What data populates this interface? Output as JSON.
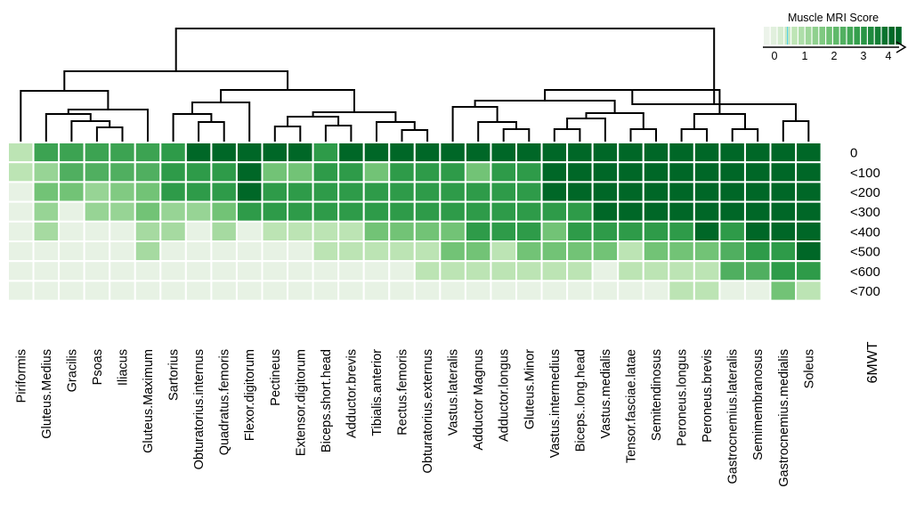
{
  "chart_data": {
    "type": "heatmap",
    "title": "",
    "legend": {
      "title": "Muscle MRI Score",
      "ticks": [
        "0",
        "1",
        "2",
        "3",
        "4"
      ],
      "range": [
        0,
        4.3
      ],
      "placement": "top-right"
    },
    "x_label": "",
    "y_label": "6MWT",
    "columns": [
      "Piriformis",
      "Gluteus.Medius",
      "Gracilis",
      "Psoas",
      "Iliacus",
      "Gluteus.Maximum",
      "Sartorius",
      "Obturatorius.internus",
      "Quadratus.femoris",
      "Flexor.digitorum",
      "Pectineus",
      "Extensor.digitorum",
      "Biceps.short.head",
      "Adductor.brevis",
      "Tibialis.anterior",
      "Rectus.femoris",
      "Obturatorius.externus",
      "Vastus.lateralis",
      "Adductor Magnus",
      "Adductor.longus",
      "Gluteus.Minor",
      "Vastus.intermedius",
      "Biceps..long.head",
      "Vastus.medialis",
      "Tensor.fasciae.latae",
      "Semitendinosus",
      "Peroneus.longus",
      "Peroneus.brevis",
      "Gastrocnemius.lateralis",
      "Semimembranosus",
      "Gastrocnemius.medialis",
      "Soleus"
    ],
    "rows": [
      "0",
      "<100",
      "<200",
      "<300",
      "<400",
      "<500",
      "<600",
      "<700"
    ],
    "values": [
      [
        1.0,
        2.8,
        2.8,
        2.8,
        2.8,
        2.8,
        3.0,
        4.0,
        4.0,
        4.0,
        4.0,
        4.0,
        3.0,
        4.0,
        4.0,
        4.0,
        4.0,
        4.0,
        4.0,
        4.0,
        4.0,
        4.0,
        4.0,
        4.0,
        4.0,
        4.0,
        4.0,
        4.0,
        4.0,
        4.0,
        4.0,
        4.0
      ],
      [
        1.0,
        1.5,
        2.5,
        2.5,
        2.5,
        2.5,
        3.0,
        3.0,
        3.0,
        4.0,
        2.0,
        2.0,
        3.0,
        3.0,
        2.0,
        3.0,
        3.0,
        3.0,
        2.0,
        3.0,
        3.0,
        4.0,
        4.0,
        4.0,
        4.0,
        4.0,
        4.0,
        4.0,
        4.0,
        4.0,
        4.0,
        4.0
      ],
      [
        0.2,
        2.0,
        2.0,
        1.5,
        1.8,
        2.0,
        3.0,
        3.0,
        3.0,
        4.0,
        3.0,
        3.0,
        3.0,
        3.0,
        3.0,
        3.0,
        3.0,
        3.0,
        3.0,
        3.0,
        3.0,
        4.0,
        4.0,
        4.0,
        4.0,
        4.0,
        4.0,
        4.0,
        4.0,
        4.0,
        4.0,
        4.0
      ],
      [
        0.2,
        1.5,
        0.2,
        1.5,
        1.5,
        2.0,
        1.5,
        1.5,
        2.0,
        3.0,
        3.0,
        3.0,
        3.0,
        3.0,
        3.0,
        3.0,
        3.0,
        3.0,
        3.0,
        3.0,
        3.0,
        3.0,
        3.0,
        4.0,
        4.0,
        4.0,
        4.0,
        4.0,
        4.0,
        4.0,
        4.0,
        4.0
      ],
      [
        0.2,
        1.3,
        0.2,
        0.2,
        0.2,
        1.3,
        1.3,
        0.2,
        1.3,
        0.2,
        1.0,
        1.0,
        1.0,
        1.0,
        2.0,
        2.0,
        2.0,
        2.0,
        3.0,
        3.0,
        3.0,
        2.0,
        3.0,
        3.0,
        3.0,
        3.0,
        3.0,
        4.0,
        3.0,
        4.0,
        4.0,
        4.0
      ],
      [
        0.2,
        0.2,
        0.2,
        0.2,
        0.2,
        1.3,
        0.2,
        0.2,
        0.2,
        0.2,
        0.2,
        0.2,
        1.0,
        1.0,
        1.0,
        1.0,
        1.0,
        2.0,
        2.0,
        1.0,
        2.0,
        2.0,
        2.0,
        2.0,
        1.0,
        2.0,
        2.0,
        2.0,
        2.5,
        3.0,
        3.0,
        4.0
      ],
      [
        0.2,
        0.2,
        0.2,
        0.2,
        0.2,
        0.2,
        0.2,
        0.2,
        0.2,
        0.2,
        0.2,
        0.2,
        0.2,
        0.2,
        0.2,
        0.2,
        1.0,
        1.0,
        1.0,
        1.0,
        1.0,
        1.0,
        1.0,
        0.2,
        1.0,
        1.0,
        1.0,
        1.0,
        2.5,
        2.5,
        3.0,
        3.0
      ],
      [
        0.2,
        0.2,
        0.2,
        0.2,
        0.2,
        0.2,
        0.2,
        0.2,
        0.2,
        0.2,
        0.2,
        0.2,
        0.2,
        0.2,
        0.2,
        0.2,
        0.2,
        0.2,
        0.2,
        0.2,
        0.2,
        0.2,
        0.2,
        0.2,
        0.2,
        0.2,
        1.0,
        1.0,
        0.2,
        0.2,
        2.0,
        1.0
      ]
    ],
    "grid": true
  }
}
